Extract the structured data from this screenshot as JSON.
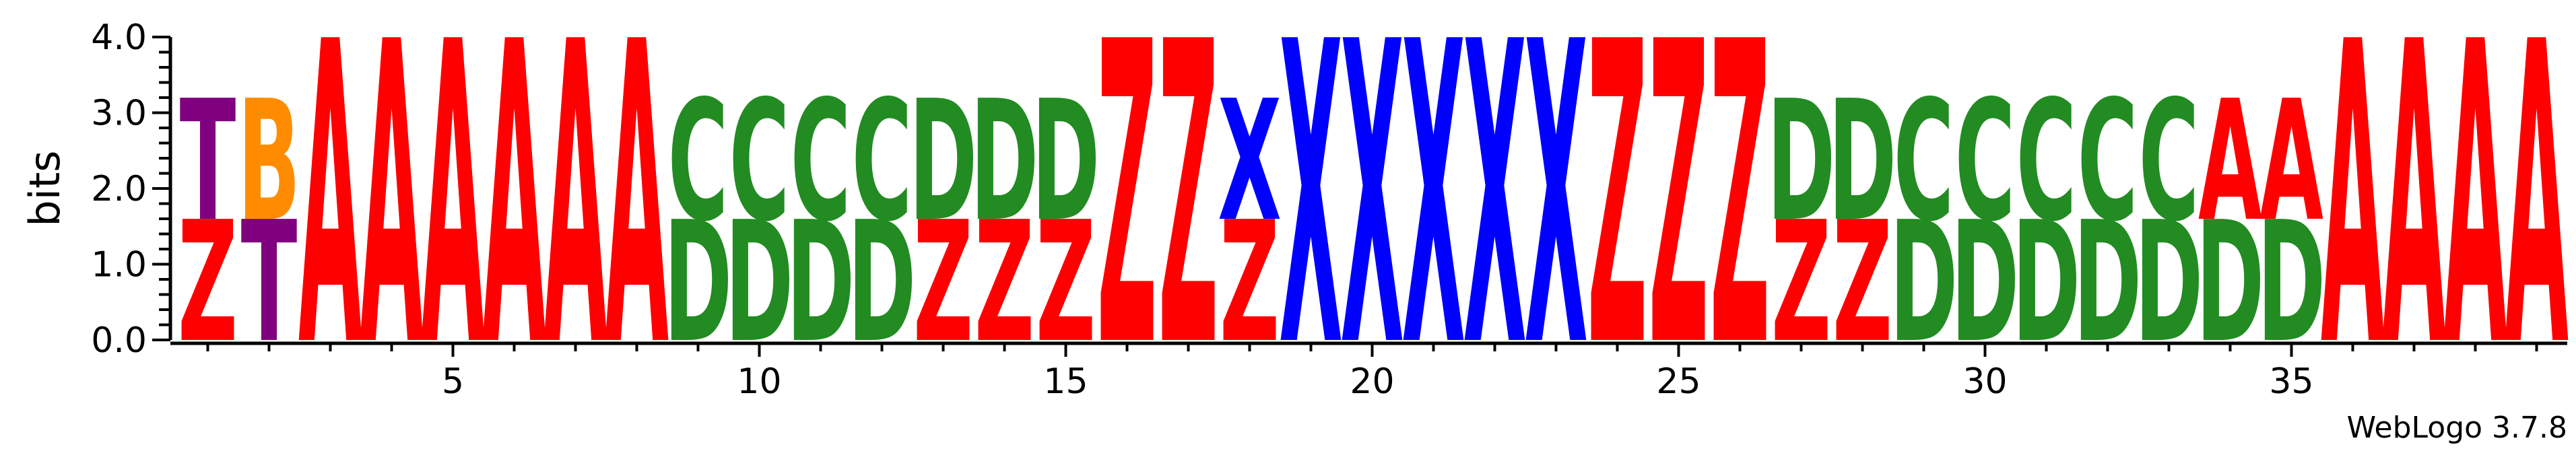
{
  "chart_data": {
    "type": "sequence-logo",
    "ylabel": "bits",
    "ylim": [
      0,
      4.0
    ],
    "yticks": [
      "0.0",
      "1.0",
      "2.0",
      "3.0",
      "4.0"
    ],
    "xtick_positions": [
      5,
      10,
      15,
      20,
      25,
      30,
      35
    ],
    "xtick_labels": [
      "5",
      "10",
      "15",
      "20",
      "25",
      "30",
      "35"
    ],
    "xlim": [
      0.5,
      39.5
    ],
    "colors": {
      "A": "#ff0000",
      "Z": "#ff0000",
      "C": "#228b22",
      "D": "#228b22",
      "X": "#0000ff",
      "T": "#800080",
      "B": "#ff8c00"
    },
    "positions": [
      [
        {
          "letter": "Z",
          "bits": 1.6
        },
        {
          "letter": "T",
          "bits": 1.6
        }
      ],
      [
        {
          "letter": "T",
          "bits": 1.6
        },
        {
          "letter": "B",
          "bits": 1.6
        }
      ],
      [
        {
          "letter": "A",
          "bits": 4.0
        }
      ],
      [
        {
          "letter": "A",
          "bits": 4.0
        }
      ],
      [
        {
          "letter": "A",
          "bits": 4.0
        }
      ],
      [
        {
          "letter": "A",
          "bits": 4.0
        }
      ],
      [
        {
          "letter": "A",
          "bits": 4.0
        }
      ],
      [
        {
          "letter": "A",
          "bits": 4.0
        }
      ],
      [
        {
          "letter": "D",
          "bits": 1.6
        },
        {
          "letter": "C",
          "bits": 1.6
        }
      ],
      [
        {
          "letter": "D",
          "bits": 1.6
        },
        {
          "letter": "C",
          "bits": 1.6
        }
      ],
      [
        {
          "letter": "D",
          "bits": 1.6
        },
        {
          "letter": "C",
          "bits": 1.6
        }
      ],
      [
        {
          "letter": "D",
          "bits": 1.6
        },
        {
          "letter": "C",
          "bits": 1.6
        }
      ],
      [
        {
          "letter": "Z",
          "bits": 1.6
        },
        {
          "letter": "D",
          "bits": 1.6
        }
      ],
      [
        {
          "letter": "Z",
          "bits": 1.6
        },
        {
          "letter": "D",
          "bits": 1.6
        }
      ],
      [
        {
          "letter": "Z",
          "bits": 1.6
        },
        {
          "letter": "D",
          "bits": 1.6
        }
      ],
      [
        {
          "letter": "Z",
          "bits": 4.0
        }
      ],
      [
        {
          "letter": "Z",
          "bits": 4.0
        }
      ],
      [
        {
          "letter": "Z",
          "bits": 1.6
        },
        {
          "letter": "X",
          "bits": 1.6
        }
      ],
      [
        {
          "letter": "X",
          "bits": 4.0
        }
      ],
      [
        {
          "letter": "X",
          "bits": 4.0
        }
      ],
      [
        {
          "letter": "X",
          "bits": 4.0
        }
      ],
      [
        {
          "letter": "X",
          "bits": 4.0
        }
      ],
      [
        {
          "letter": "X",
          "bits": 4.0
        }
      ],
      [
        {
          "letter": "Z",
          "bits": 4.0
        }
      ],
      [
        {
          "letter": "Z",
          "bits": 4.0
        }
      ],
      [
        {
          "letter": "Z",
          "bits": 4.0
        }
      ],
      [
        {
          "letter": "Z",
          "bits": 1.6
        },
        {
          "letter": "D",
          "bits": 1.6
        }
      ],
      [
        {
          "letter": "Z",
          "bits": 1.6
        },
        {
          "letter": "D",
          "bits": 1.6
        }
      ],
      [
        {
          "letter": "D",
          "bits": 1.6
        },
        {
          "letter": "C",
          "bits": 1.6
        }
      ],
      [
        {
          "letter": "D",
          "bits": 1.6
        },
        {
          "letter": "C",
          "bits": 1.6
        }
      ],
      [
        {
          "letter": "D",
          "bits": 1.6
        },
        {
          "letter": "C",
          "bits": 1.6
        }
      ],
      [
        {
          "letter": "D",
          "bits": 1.6
        },
        {
          "letter": "C",
          "bits": 1.6
        }
      ],
      [
        {
          "letter": "D",
          "bits": 1.6
        },
        {
          "letter": "C",
          "bits": 1.6
        }
      ],
      [
        {
          "letter": "D",
          "bits": 1.6
        },
        {
          "letter": "A",
          "bits": 1.6
        }
      ],
      [
        {
          "letter": "D",
          "bits": 1.6
        },
        {
          "letter": "A",
          "bits": 1.6
        }
      ],
      [
        {
          "letter": "A",
          "bits": 4.0
        }
      ],
      [
        {
          "letter": "A",
          "bits": 4.0
        }
      ],
      [
        {
          "letter": "A",
          "bits": 4.0
        }
      ],
      [
        {
          "letter": "A",
          "bits": 4.0
        }
      ]
    ]
  },
  "footer": {
    "credit": "WebLogo 3.7.8"
  }
}
